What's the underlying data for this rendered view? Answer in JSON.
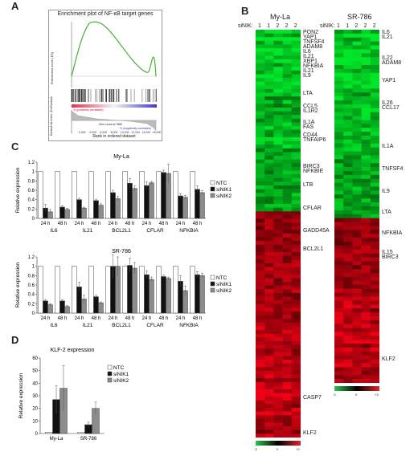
{
  "panels": {
    "A": "A",
    "B": "B",
    "C": "C",
    "D": "D"
  },
  "panelA": {
    "title": "Enrichment plot of NF-κB target genes",
    "es_label": "Enrichment score (ES)",
    "metric_label": "Ranked list metric (PreRanked)",
    "xlabel": "Rank in ordered dataset",
    "xticks": [
      "0",
      "2,000",
      "4,000",
      "6,000",
      "8,000",
      "10,000",
      "12,000",
      "14,000",
      "16,000"
    ],
    "pos_label": "'a' (positively correlated)",
    "neg_label": "'b' (negatively correlated)",
    "zero_cross": "Zero cross at 7880",
    "colors": {
      "curve": "#45b035",
      "red": "#e0304a",
      "blue": "#3a3ac0"
    }
  },
  "panelB": {
    "heatmaps": [
      {
        "title": "My-La",
        "sinik_label": "siNIK:",
        "columns": [
          "1",
          "1",
          "2",
          "2",
          "2"
        ],
        "genes": [
          "PON2",
          "YAP1",
          "TNFSF4",
          "ADAM8",
          "IL6",
          "IL21",
          "XBP1",
          "NFKBIA",
          "IL21",
          "IL9",
          "LTA",
          "CCL5",
          "IL1R2",
          "IL1A",
          "FAS",
          "CD44",
          "TNFAIP6",
          "BIRC3",
          "NFKBIE",
          "LTB",
          "CFLAR",
          "GADD45A",
          "BCL2L1",
          "CASP7",
          "KLF2"
        ]
      },
      {
        "title": "SR-786",
        "sinik_label": "siNIK:",
        "columns": [
          "1",
          "1",
          "2",
          "2",
          "2"
        ],
        "genes": [
          "IL6",
          "IL21",
          "IL22",
          "ADAM8",
          "YAP1",
          "IL26",
          "CCL17",
          "IL1A",
          "TNFSF4",
          "IL9",
          "LTA",
          "NFKBIA",
          "IL15",
          "BIRC3",
          "KLF2"
        ]
      }
    ],
    "scale": {
      "low": "-3",
      "mid": "0",
      "high": "+3"
    }
  },
  "chart_data": [
    {
      "type": "bar",
      "title": "My-La",
      "ylabel": "Relative expression",
      "ylim": [
        0,
        1.2
      ],
      "yticks": [
        "0",
        "0.2",
        "0.4",
        "0.6",
        "0.8",
        "1",
        "1.2"
      ],
      "categories": [
        "24 h",
        "48 h",
        "24 h",
        "48 h",
        "24 h",
        "48 h",
        "24 h",
        "48 h",
        "24 h",
        "48 h"
      ],
      "groups": [
        "IL6",
        "IL21",
        "BCL2L1",
        "CFLAR",
        "NFKBIA"
      ],
      "series": [
        {
          "name": "NTC",
          "values": [
            1,
            1,
            1,
            1,
            1,
            1,
            1,
            1,
            1,
            1
          ],
          "errors": [
            0,
            0,
            0,
            0,
            0,
            0,
            0,
            0,
            0,
            0
          ]
        },
        {
          "name": "siNIK1",
          "values": [
            0.22,
            0.24,
            0.4,
            0.38,
            0.55,
            0.75,
            0.7,
            0.98,
            0.48,
            0.62
          ],
          "errors": [
            0.08,
            0.03,
            0.03,
            0.03,
            0.05,
            0.1,
            0.08,
            0.05,
            0.05,
            0.07
          ]
        },
        {
          "name": "siNIK2",
          "values": [
            0.14,
            0.19,
            0.22,
            0.28,
            0.42,
            0.64,
            0.76,
            0.96,
            0.45,
            0.55
          ],
          "errors": [
            0.05,
            0.02,
            0.02,
            0.03,
            0.05,
            0.05,
            0.03,
            0.2,
            0.04,
            0.04
          ]
        }
      ],
      "legend": "right"
    },
    {
      "type": "bar",
      "title": "SR-786",
      "ylabel": "Relative expression",
      "ylim": [
        0,
        1.2
      ],
      "yticks": [
        "0",
        "0.2",
        "0.4",
        "0.6",
        "0.8",
        "1",
        "1.2"
      ],
      "categories": [
        "24 h",
        "48 h",
        "24 h",
        "48 h",
        "24 h",
        "48 h",
        "24 h",
        "48 h",
        "24 h",
        "48 h"
      ],
      "groups": [
        "IL6",
        "IL21",
        "BCL2L1",
        "CFLAR",
        "NFKBIA"
      ],
      "series": [
        {
          "name": "NTC",
          "values": [
            1,
            1,
            1,
            1,
            1,
            1,
            1,
            1,
            1,
            1
          ],
          "errors": [
            0,
            0,
            0,
            0,
            0,
            0,
            0,
            0,
            0,
            0
          ]
        },
        {
          "name": "siNIK1",
          "values": [
            0.26,
            0.26,
            0.56,
            0.35,
            1.0,
            1.02,
            0.82,
            0.78,
            0.68,
            0.82
          ],
          "errors": [
            0.03,
            0.03,
            0.1,
            0.03,
            0.25,
            0.15,
            0.08,
            0.03,
            0.12,
            0.06
          ]
        },
        {
          "name": "siNIK2",
          "values": [
            0.18,
            0.14,
            0.3,
            0.22,
            1.0,
            0.96,
            0.72,
            0.74,
            0.48,
            0.8
          ],
          "errors": [
            0.02,
            0.02,
            0.08,
            0.02,
            0.2,
            0.12,
            0.05,
            0.03,
            0.1,
            0.05
          ]
        }
      ],
      "legend": "right"
    },
    {
      "type": "bar",
      "title": "KLF-2 expression",
      "ylabel": "Relative expression",
      "ylim": [
        0,
        60
      ],
      "yticks": [
        "0",
        "10",
        "20",
        "30",
        "40",
        "50",
        "60"
      ],
      "categories": [
        "My-La",
        "SR-786"
      ],
      "series": [
        {
          "name": "NTC",
          "values": [
            1,
            1
          ],
          "errors": [
            0,
            0
          ]
        },
        {
          "name": "siNIK1",
          "values": [
            27,
            7
          ],
          "errors": [
            11,
            2
          ]
        },
        {
          "name": "siNIK2",
          "values": [
            36,
            20
          ],
          "errors": [
            18,
            5
          ]
        }
      ],
      "legend": "right"
    }
  ]
}
